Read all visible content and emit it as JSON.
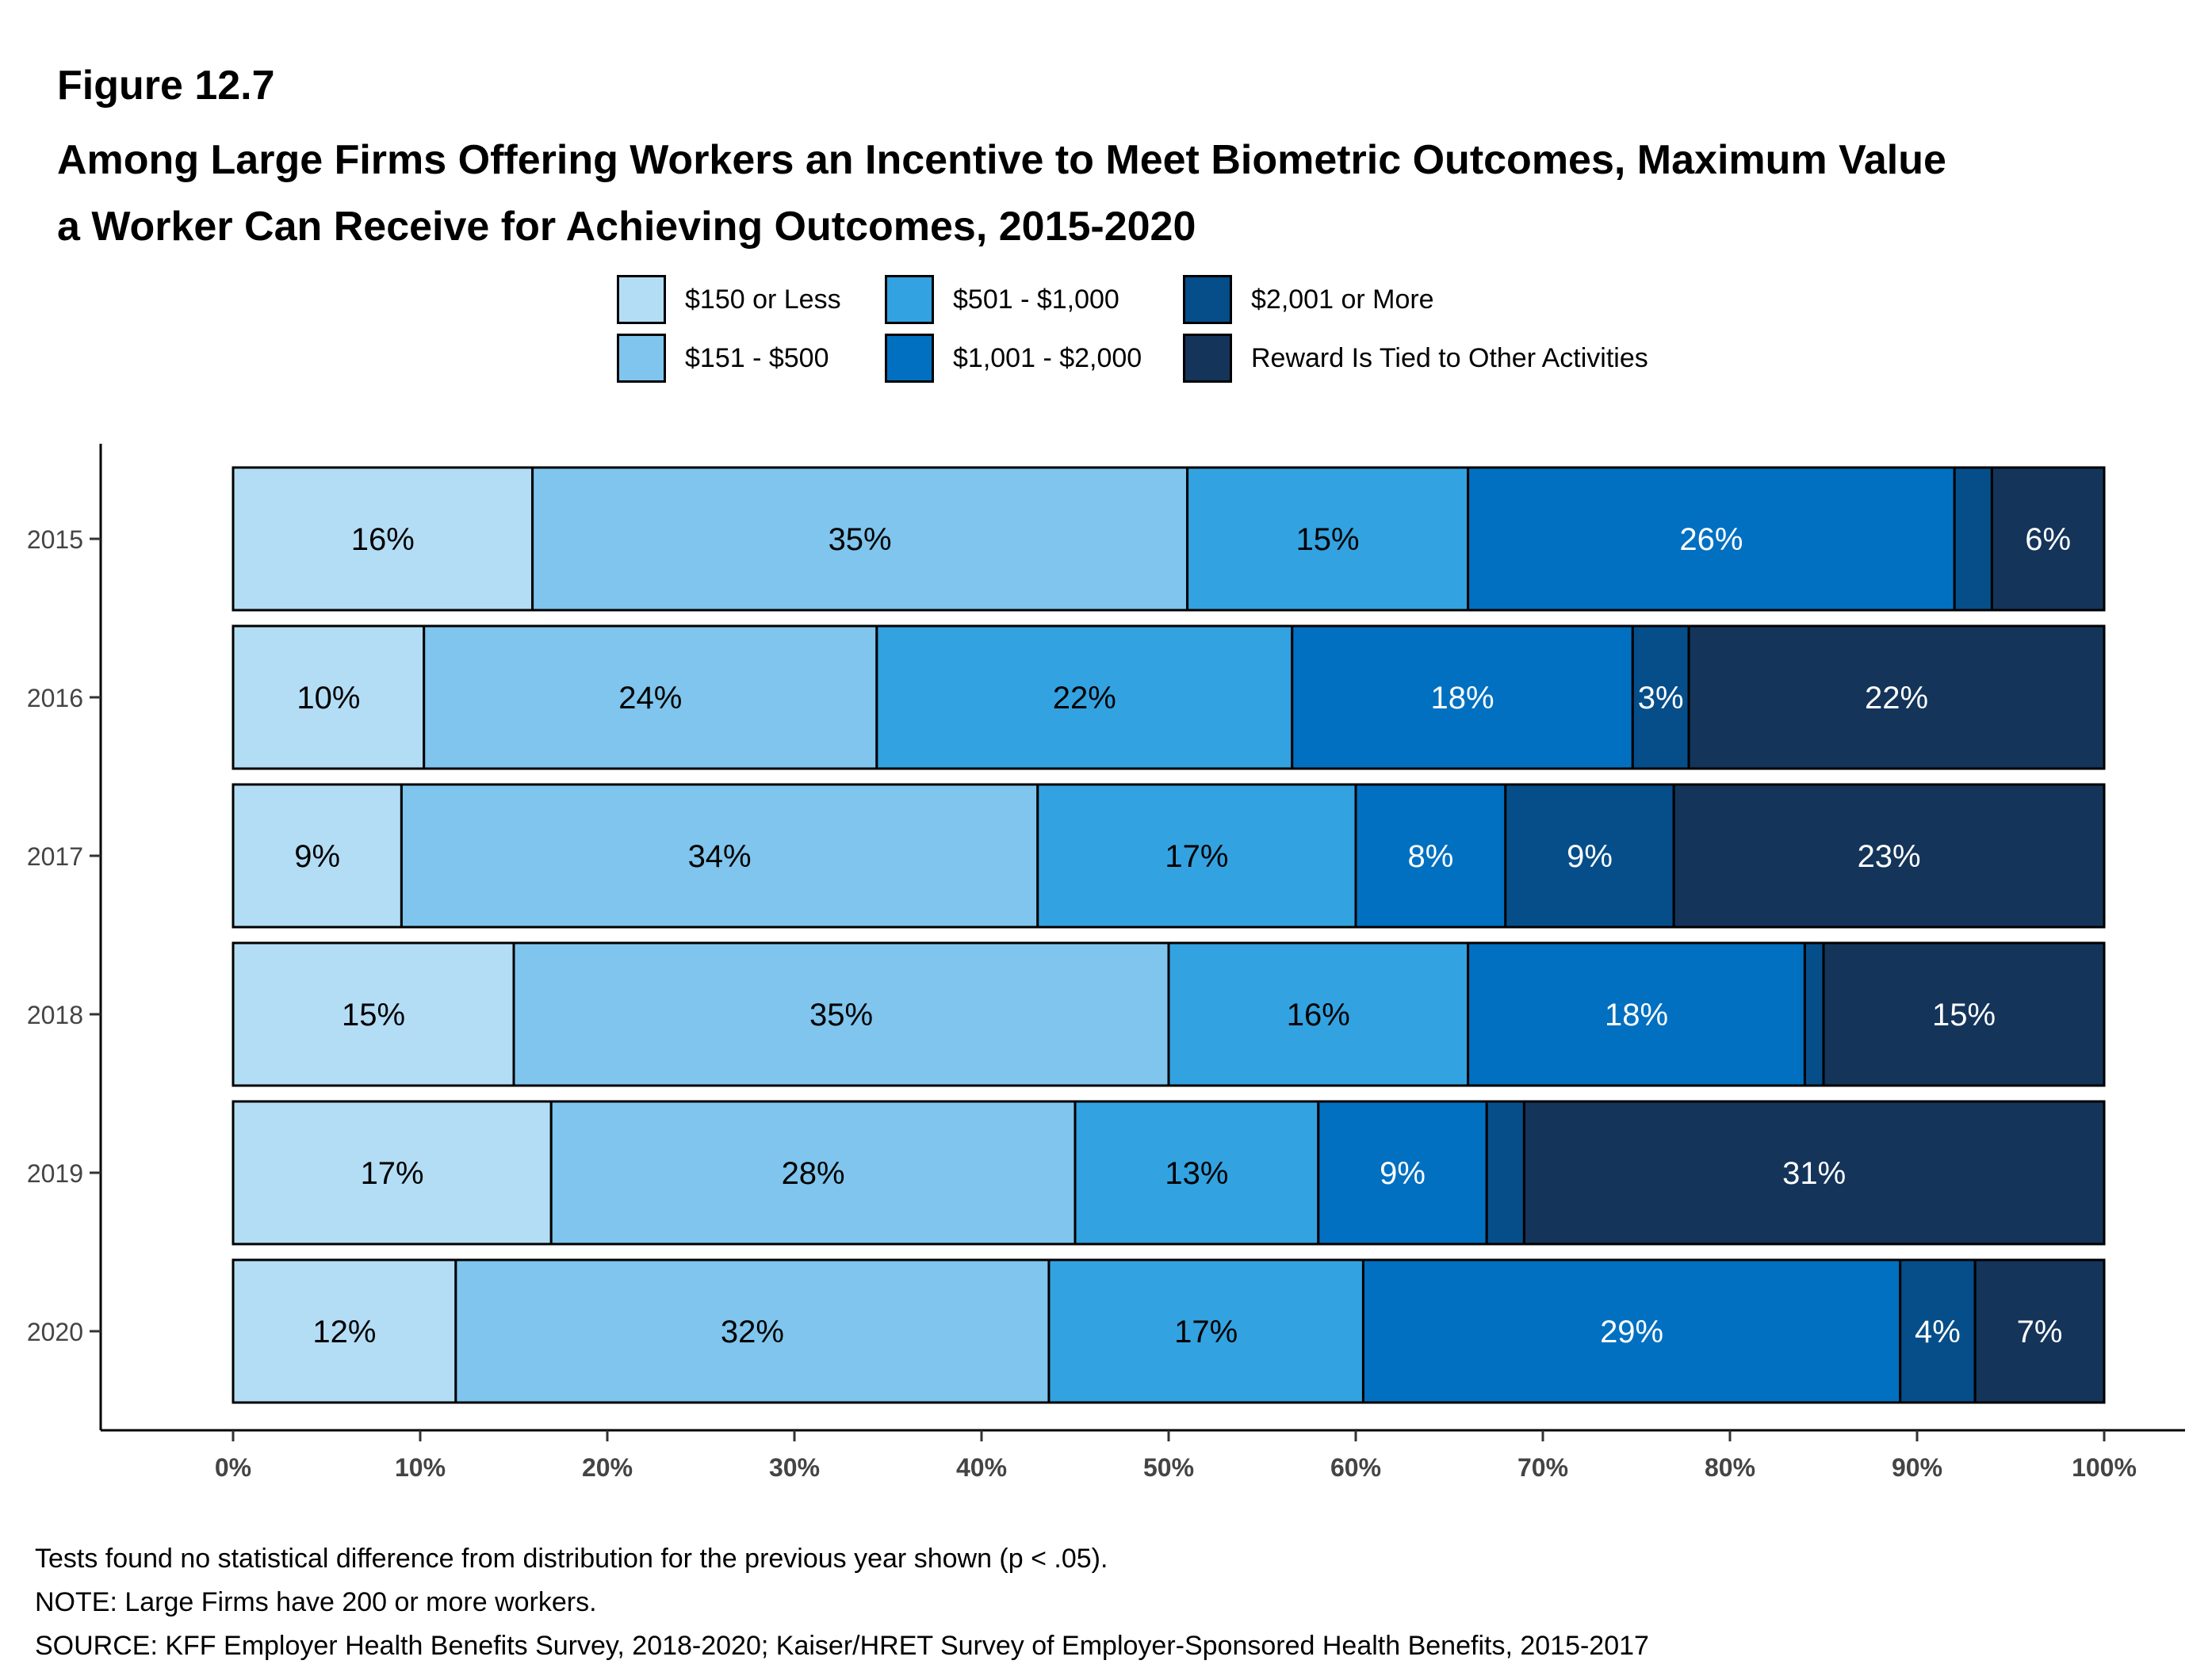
{
  "figure_label": "Figure 12.7",
  "title_lines": [
    "Among Large Firms Offering Workers an Incentive to Meet Biometric Outcomes, Maximum Value",
    "a Worker Can Receive for Achieving Outcomes, 2015-2020"
  ],
  "colors": {
    "s150_or_less": "#b3ddf5",
    "s151_500": "#7fc5ed",
    "s501_1000": "#33a2e0",
    "s1001_2000": "#0170c1",
    "s2001_more": "#054e8a",
    "s_other_activities": "#14345a"
  },
  "chart_data": {
    "type": "bar",
    "orientation": "horizontal",
    "stacked": true,
    "categories": [
      "2015",
      "2016",
      "2017",
      "2018",
      "2019",
      "2020"
    ],
    "series": [
      {
        "name": "$150 or Less",
        "values": [
          16,
          10.2,
          9,
          15,
          17,
          11.9
        ],
        "labels": [
          "16%",
          "10%",
          "9%",
          "15%",
          "17%",
          "12%"
        ]
      },
      {
        "name": "$151 - $500",
        "values": [
          35,
          24.2,
          34,
          35,
          28,
          31.7
        ],
        "labels": [
          "35%",
          "24%",
          "34%",
          "35%",
          "28%",
          "32%"
        ]
      },
      {
        "name": "$501 - $1,000",
        "values": [
          15,
          22.2,
          17,
          16,
          13,
          16.8
        ],
        "labels": [
          "15%",
          "22%",
          "17%",
          "16%",
          "13%",
          "17%"
        ]
      },
      {
        "name": "$1,001 - $2,000",
        "values": [
          26,
          18.2,
          8,
          18,
          9,
          28.7
        ],
        "labels": [
          "26%",
          "18%",
          "8%",
          "18%",
          "9%",
          "29%"
        ]
      },
      {
        "name": "$2,001 or More",
        "values": [
          2,
          3,
          9,
          1,
          2,
          4
        ],
        "labels": [
          "",
          "3%",
          "9%",
          "",
          "",
          "4%"
        ]
      },
      {
        "name": "Reward Is Tied to Other Activities",
        "values": [
          6,
          22.2,
          23,
          15,
          31,
          6.9
        ],
        "labels": [
          "6%",
          "22%",
          "23%",
          "15%",
          "31%",
          "7%"
        ]
      }
    ],
    "x_ticks": [
      "0%",
      "10%",
      "20%",
      "30%",
      "40%",
      "50%",
      "60%",
      "70%",
      "80%",
      "90%",
      "100%"
    ],
    "xlim": [
      0,
      100
    ],
    "legend_position": "top"
  },
  "notes": [
    "Tests found no statistical difference from distribution for the previous year shown (p < .05).",
    "NOTE: Large Firms have 200 or more workers.",
    "SOURCE: KFF Employer Health Benefits Survey, 2018-2020; Kaiser/HRET Survey of Employer-Sponsored Health Benefits, 2015-2017"
  ]
}
